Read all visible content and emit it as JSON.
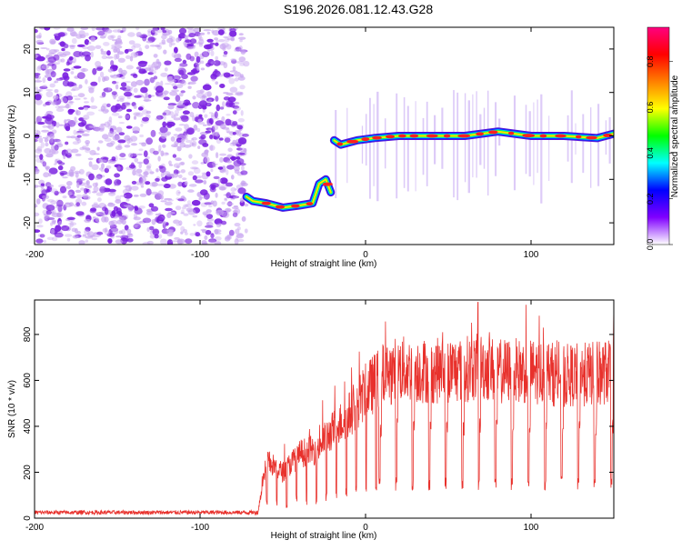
{
  "figure_title": "S196.2026.081.12.43.G28",
  "colors": {
    "snr_line": "#e8312c",
    "scatter_sparse": "#c6a2f0",
    "scatter_dense": "#7a1fe0",
    "axis": "#000000"
  },
  "chart_data": [
    {
      "type": "heatmap",
      "title": "",
      "xlabel": "Height of straight line (km)",
      "ylabel": "Frequency (Hz)",
      "xlim": [
        -200,
        150
      ],
      "ylim": [
        -25,
        25
      ],
      "x_ticks": [
        -200,
        -100,
        0,
        100
      ],
      "y_ticks": [
        -20,
        -10,
        0,
        10,
        20
      ],
      "noise_region": {
        "x": [
          -200,
          -72
        ],
        "y": [
          -25,
          25
        ]
      },
      "ridge": [
        {
          "x": -72,
          "y": -14
        },
        {
          "x": -68,
          "y": -15
        },
        {
          "x": -60,
          "y": -15.5
        },
        {
          "x": -50,
          "y": -16.5
        },
        {
          "x": -40,
          "y": -16
        },
        {
          "x": -32,
          "y": -15.5
        },
        {
          "x": -28,
          "y": -11
        },
        {
          "x": -24,
          "y": -10
        },
        {
          "x": -21,
          "y": -13
        },
        {
          "x": -19,
          "y": -1
        },
        {
          "x": -15,
          "y": -2
        },
        {
          "x": -5,
          "y": -1
        },
        {
          "x": 5,
          "y": -0.5
        },
        {
          "x": 20,
          "y": 0
        },
        {
          "x": 40,
          "y": 0
        },
        {
          "x": 60,
          "y": 0
        },
        {
          "x": 80,
          "y": 1
        },
        {
          "x": 100,
          "y": 0
        },
        {
          "x": 120,
          "y": 0
        },
        {
          "x": 140,
          "y": -0.5
        },
        {
          "x": 150,
          "y": 0.5
        }
      ],
      "colorbar": {
        "label": "Normalized spectral amplitude",
        "range": [
          0,
          0.95
        ],
        "ticks": [
          0.0,
          0.2,
          0.4,
          0.6,
          0.8
        ],
        "colormap": [
          "#ffffff",
          "#8000ff",
          "#0000ff",
          "#00ffff",
          "#00ff00",
          "#ffff00",
          "#ff8000",
          "#ff0000",
          "#ff0080"
        ]
      }
    },
    {
      "type": "line",
      "title": "",
      "xlabel": "Height of straight line (km)",
      "ylabel": "SNR (10 * v/v)",
      "xlim": [
        -200,
        150
      ],
      "ylim": [
        0,
        950
      ],
      "x_ticks": [
        -200,
        -100,
        0,
        100
      ],
      "y_ticks": [
        0,
        200,
        400,
        600,
        800
      ],
      "series": [
        {
          "envelope": [
            {
              "x": -200,
              "y": 25
            },
            {
              "x": -100,
              "y": 25
            },
            {
              "x": -65,
              "y": 25
            },
            {
              "x": -60,
              "y": 250
            },
            {
              "x": -50,
              "y": 200
            },
            {
              "x": -40,
              "y": 280
            },
            {
              "x": -30,
              "y": 300
            },
            {
              "x": -20,
              "y": 380
            },
            {
              "x": -10,
              "y": 450
            },
            {
              "x": 0,
              "y": 550
            },
            {
              "x": 10,
              "y": 620
            },
            {
              "x": 20,
              "y": 650
            },
            {
              "x": 40,
              "y": 640
            },
            {
              "x": 60,
              "y": 650
            },
            {
              "x": 70,
              "y": 660
            },
            {
              "x": 80,
              "y": 640
            },
            {
              "x": 100,
              "y": 640
            },
            {
              "x": 120,
              "y": 620
            },
            {
              "x": 140,
              "y": 630
            },
            {
              "x": 150,
              "y": 640
            }
          ],
          "peak": {
            "x": 68,
            "y": 940
          },
          "dip_interval_km": 10,
          "dip_start_km": 8,
          "dip_min": 120
        }
      ]
    }
  ]
}
